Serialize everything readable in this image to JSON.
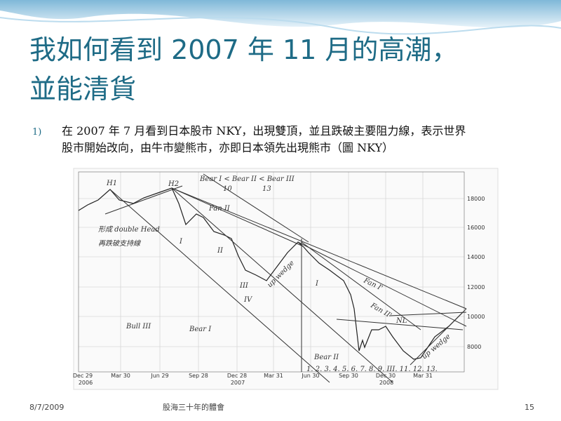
{
  "slide": {
    "title_lines": [
      "我如何看到 2007 年 11 月的高潮，",
      "並能清貨"
    ],
    "bullet": {
      "marker": "1)",
      "lines": [
        "在 2007 年 7 月看到日本股市 NKY，出現雙頂，並且跌破主要阻力線，表示世界",
        "股市開始改向，由牛市變熊市，亦即日本領先出現熊市（圖 NKY）"
      ]
    },
    "figure": {
      "y_labels": [
        "18000",
        "16000",
        "14000",
        "12000",
        "10000",
        "8000"
      ],
      "x_labels": [
        "Dec 29",
        "Mar 30",
        "Jun 29",
        "Sep 28",
        "Dec 28",
        "Mar 31",
        "Jun 30",
        "Sep 30",
        "Dec 30",
        "Mar 31"
      ],
      "year_labels": [
        "2006",
        "2007",
        "2008"
      ],
      "annotations": [
        "H1",
        "H2",
        "Bear I < Bear II < Bear III",
        "10",
        "13",
        "Fan II",
        "形成 double Head",
        "再跌破支持線",
        "I",
        "II",
        "III",
        "IV",
        "up wedge",
        "Bull III",
        "Bear I",
        "I",
        "Fan I'",
        "Fan II'",
        "NL",
        "Bear II",
        "1. 2. 3. 4. 5. 6. 7. 8. 9. III. 11. 12. 13.",
        "up wedge"
      ]
    },
    "footer": {
      "date": "8/7/2009",
      "center": "股海三十年的體會",
      "page": "15"
    }
  }
}
